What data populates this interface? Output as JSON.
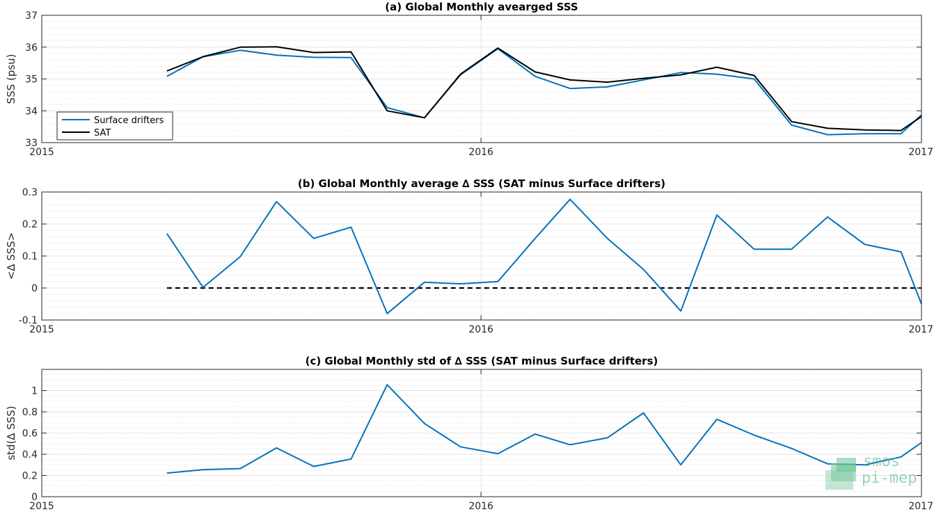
{
  "chart_data": [
    {
      "type": "line",
      "title": "(a) Global Monthly avearged SSS",
      "xlabel": "",
      "ylabel": "SSS (psu)",
      "xlim": [
        "2015-01-01",
        "2017-01-01"
      ],
      "ylim": [
        33,
        37
      ],
      "xticks": [
        "2015",
        "2016",
        "2017"
      ],
      "yticks": [
        "33",
        "34",
        "35",
        "36",
        "37"
      ],
      "grid": true,
      "legend": "bottom-left",
      "x": [
        "2015-04-15",
        "2015-05-15",
        "2015-06-15",
        "2015-07-15",
        "2015-08-15",
        "2015-09-15",
        "2015-10-15",
        "2015-11-15",
        "2015-12-15",
        "2016-01-15",
        "2016-02-15",
        "2016-03-15",
        "2016-04-15",
        "2016-05-15",
        "2016-06-15",
        "2016-07-15",
        "2016-08-15",
        "2016-09-15",
        "2016-10-15",
        "2016-11-15",
        "2016-12-15",
        "2017-01-01"
      ],
      "series": [
        {
          "name": "Surface drifters",
          "color": "#0072BD",
          "values": [
            35.08,
            35.7,
            35.9,
            35.75,
            35.68,
            35.67,
            34.1,
            33.78,
            35.13,
            35.95,
            35.08,
            34.7,
            34.75,
            34.97,
            35.2,
            35.15,
            35.0,
            33.55,
            33.25,
            33.28,
            33.28,
            33.87
          ]
        },
        {
          "name": "SAT",
          "color": "#000000",
          "values": [
            35.25,
            35.7,
            36.0,
            36.01,
            35.83,
            35.85,
            34.0,
            33.78,
            35.15,
            35.97,
            35.22,
            34.97,
            34.9,
            35.02,
            35.13,
            35.37,
            35.11,
            33.66,
            33.45,
            33.4,
            33.38,
            33.82
          ]
        }
      ]
    },
    {
      "type": "line",
      "title": "(b) Global Monthly average ∆ SSS (SAT minus Surface drifters)",
      "xlabel": "",
      "ylabel": "<∆ SSS>",
      "xlim": [
        "2015-01-01",
        "2017-01-01"
      ],
      "ylim": [
        -0.1,
        0.3
      ],
      "xticks": [
        "2015",
        "2016",
        "2017"
      ],
      "yticks": [
        "-0.1",
        "0",
        "0.1",
        "0.2",
        "0.3"
      ],
      "grid": true,
      "x": [
        "2015-04-15",
        "2015-05-15",
        "2015-06-15",
        "2015-07-15",
        "2015-08-15",
        "2015-09-15",
        "2015-10-15",
        "2015-11-15",
        "2015-12-15",
        "2016-01-15",
        "2016-02-15",
        "2016-03-15",
        "2016-04-15",
        "2016-05-15",
        "2016-06-15",
        "2016-07-15",
        "2016-08-15",
        "2016-09-15",
        "2016-10-15",
        "2016-11-15",
        "2016-12-15",
        "2017-01-01"
      ],
      "series": [
        {
          "color": "#0072BD",
          "values": [
            0.17,
            0.002,
            0.098,
            0.27,
            0.155,
            0.19,
            -0.08,
            0.018,
            0.013,
            0.02,
            0.155,
            0.277,
            0.155,
            0.058,
            -0.072,
            0.228,
            0.121,
            0.121,
            0.222,
            0.136,
            0.113,
            -0.05
          ]
        }
      ],
      "reference_line": {
        "y": 0,
        "x_start": "2015-04-15",
        "x_end": "2017-01-01",
        "style": "dashed",
        "color": "#000000"
      }
    },
    {
      "type": "line",
      "title": "(c) Global Monthly std of ∆ SSS (SAT minus Surface drifters)",
      "xlabel": "",
      "ylabel": "std(∆ SSS)",
      "xlim": [
        "2015-01-01",
        "2017-01-01"
      ],
      "ylim": [
        0,
        1.2
      ],
      "xticks": [
        "2015",
        "2016",
        "2017"
      ],
      "yticks": [
        "0",
        "0.2",
        "0.4",
        "0.6",
        "0.8",
        "1"
      ],
      "grid": true,
      "x": [
        "2015-04-15",
        "2015-05-15",
        "2015-06-15",
        "2015-07-15",
        "2015-08-15",
        "2015-09-15",
        "2015-10-15",
        "2015-11-15",
        "2015-12-15",
        "2016-01-15",
        "2016-02-15",
        "2016-03-15",
        "2016-04-15",
        "2016-05-15",
        "2016-06-15",
        "2016-07-15",
        "2016-08-15",
        "2016-09-15",
        "2016-10-15",
        "2016-11-15",
        "2016-12-15",
        "2017-01-01"
      ],
      "series": [
        {
          "color": "#0072BD",
          "values": [
            0.222,
            0.255,
            0.265,
            0.46,
            0.285,
            0.355,
            1.055,
            0.69,
            0.47,
            0.405,
            0.59,
            0.49,
            0.555,
            0.79,
            0.3,
            0.73,
            0.58,
            0.455,
            0.31,
            0.3,
            0.375,
            0.51
          ]
        }
      ]
    }
  ],
  "watermark": {
    "line1": "smos",
    "line2": "pi-mep",
    "color": "#4caf8a"
  }
}
